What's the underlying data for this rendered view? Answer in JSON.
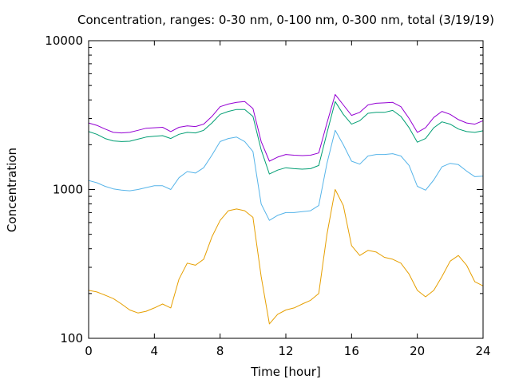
{
  "chart_data": {
    "type": "line",
    "title": "Concentration, ranges: 0-30 nm, 0-100 nm, 0-300 nm, total (3/19/19)",
    "xlabel": "Time [hour]",
    "ylabel": "Concentration",
    "xlim": [
      0,
      24
    ],
    "ylim": [
      100,
      10000
    ],
    "yscale": "log",
    "grid": false,
    "legend": "none",
    "xticks": [
      0,
      4,
      8,
      12,
      16,
      20,
      24
    ],
    "xtick_labels": [
      "0",
      "4",
      "8",
      "12",
      "16",
      "20",
      "24"
    ],
    "yticks": [
      100,
      1000,
      10000
    ],
    "ytick_labels": [
      "100",
      "1000",
      "10000"
    ],
    "series": [
      {
        "color": "#e69f00",
        "x": [
          0,
          0.5,
          1,
          1.5,
          2,
          2.5,
          3,
          3.5,
          4,
          4.5,
          5,
          5.5,
          6,
          6.5,
          7,
          7.5,
          8,
          8.5,
          9,
          9.5,
          10,
          10.5,
          11,
          11.5,
          12,
          12.5,
          13,
          13.5,
          14,
          14.5,
          15,
          15.5,
          16,
          16.5,
          17,
          17.5,
          18,
          18.5,
          19,
          19.5,
          20,
          20.5,
          21,
          21.5,
          22,
          22.5,
          23,
          23.5,
          24
        ],
        "values": [
          210,
          205,
          195,
          185,
          170,
          155,
          148,
          152,
          160,
          170,
          160,
          250,
          320,
          310,
          340,
          480,
          620,
          720,
          740,
          720,
          650,
          260,
          125,
          145,
          155,
          160,
          170,
          180,
          200,
          500,
          1000,
          780,
          420,
          360,
          390,
          380,
          350,
          340,
          320,
          270,
          210,
          190,
          210,
          260,
          330,
          360,
          310,
          240,
          225
        ]
      },
      {
        "color": "#56b4e9",
        "x": [
          0,
          0.5,
          1,
          1.5,
          2,
          2.5,
          3,
          3.5,
          4,
          4.5,
          5,
          5.5,
          6,
          6.5,
          7,
          7.5,
          8,
          8.5,
          9,
          9.5,
          10,
          10.5,
          11,
          11.5,
          12,
          12.5,
          13,
          13.5,
          14,
          14.5,
          15,
          15.5,
          16,
          16.5,
          17,
          17.5,
          18,
          18.5,
          19,
          19.5,
          20,
          20.5,
          21,
          21.5,
          22,
          22.5,
          23,
          23.5,
          24
        ],
        "values": [
          1150,
          1110,
          1050,
          1010,
          990,
          980,
          1000,
          1030,
          1060,
          1060,
          1000,
          1200,
          1320,
          1290,
          1400,
          1700,
          2100,
          2200,
          2250,
          2100,
          1800,
          800,
          620,
          670,
          700,
          700,
          710,
          720,
          780,
          1500,
          2500,
          2000,
          1550,
          1480,
          1680,
          1720,
          1720,
          1740,
          1680,
          1450,
          1050,
          990,
          1160,
          1420,
          1500,
          1470,
          1330,
          1220,
          1230
        ]
      },
      {
        "color": "#009e73",
        "x": [
          0,
          0.5,
          1,
          1.5,
          2,
          2.5,
          3,
          3.5,
          4,
          4.5,
          5,
          5.5,
          6,
          6.5,
          7,
          7.5,
          8,
          8.5,
          9,
          9.5,
          10,
          10.5,
          11,
          11.5,
          12,
          12.5,
          13,
          13.5,
          14,
          14.5,
          15,
          15.5,
          16,
          16.5,
          17,
          17.5,
          18,
          18.5,
          19,
          19.5,
          20,
          20.5,
          21,
          21.5,
          22,
          22.5,
          23,
          23.5,
          24
        ],
        "values": [
          2450,
          2350,
          2200,
          2120,
          2100,
          2110,
          2180,
          2250,
          2280,
          2300,
          2200,
          2350,
          2420,
          2400,
          2500,
          2800,
          3200,
          3350,
          3450,
          3450,
          3100,
          1850,
          1270,
          1350,
          1400,
          1380,
          1370,
          1380,
          1450,
          2400,
          3900,
          3200,
          2750,
          2900,
          3250,
          3300,
          3300,
          3400,
          3100,
          2600,
          2080,
          2200,
          2600,
          2850,
          2750,
          2550,
          2450,
          2420,
          2480
        ]
      },
      {
        "color": "#9400d3",
        "x": [
          0,
          0.5,
          1,
          1.5,
          2,
          2.5,
          3,
          3.5,
          4,
          4.5,
          5,
          5.5,
          6,
          6.5,
          7,
          7.5,
          8,
          8.5,
          9,
          9.5,
          10,
          10.5,
          11,
          11.5,
          12,
          12.5,
          13,
          13.5,
          14,
          14.5,
          15,
          15.5,
          16,
          16.5,
          17,
          17.5,
          18,
          18.5,
          19,
          19.5,
          20,
          20.5,
          21,
          21.5,
          22,
          22.5,
          23,
          23.5,
          24
        ],
        "values": [
          2800,
          2700,
          2550,
          2420,
          2400,
          2420,
          2500,
          2580,
          2600,
          2620,
          2450,
          2620,
          2680,
          2650,
          2750,
          3100,
          3600,
          3750,
          3850,
          3900,
          3500,
          2100,
          1550,
          1650,
          1720,
          1700,
          1690,
          1700,
          1760,
          2800,
          4350,
          3700,
          3150,
          3300,
          3700,
          3800,
          3820,
          3850,
          3600,
          3000,
          2420,
          2600,
          3050,
          3350,
          3200,
          2950,
          2800,
          2750,
          2900
        ]
      }
    ]
  }
}
